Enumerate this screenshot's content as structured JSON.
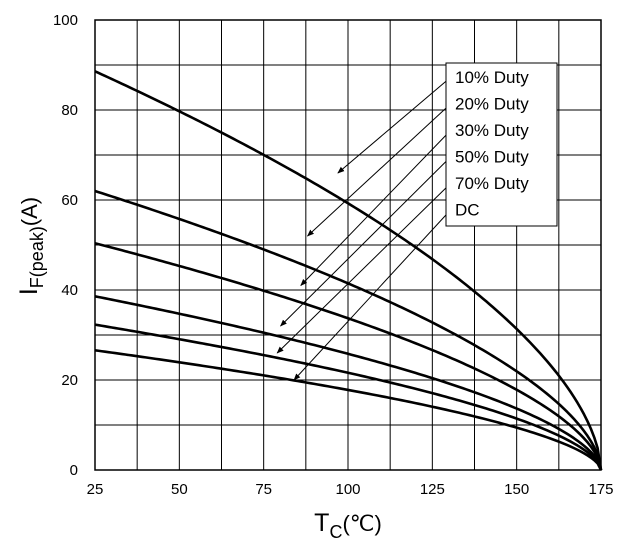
{
  "chart_data": {
    "type": "line",
    "title": "",
    "xlabel": {
      "main": "T",
      "sub": "C",
      "unit": "(℃)"
    },
    "ylabel": {
      "main": "I",
      "sub": "F(peak)",
      "unit": "(A)"
    },
    "xlim": [
      25,
      175
    ],
    "ylim": [
      0,
      100
    ],
    "x_ticks": [
      25,
      50,
      75,
      100,
      125,
      150,
      175
    ],
    "y_ticks": [
      0,
      20,
      40,
      60,
      80,
      100
    ],
    "grid": true,
    "legend_position": "top-right",
    "series": [
      {
        "name": "10% Duty",
        "x": [
          25,
          50,
          75,
          100,
          125,
          150,
          165,
          175
        ],
        "y": [
          88.6,
          81.3,
          72.8,
          63.0,
          51.4,
          36.3,
          23.7,
          0
        ]
      },
      {
        "name": "20% Duty",
        "x": [
          25,
          50,
          75,
          100,
          125,
          150,
          165,
          175
        ],
        "y": [
          62.0,
          56.6,
          50.6,
          43.8,
          35.8,
          25.3,
          16.5,
          0
        ]
      },
      {
        "name": "30% Duty",
        "x": [
          25,
          50,
          75,
          100,
          125,
          150,
          165,
          175
        ],
        "y": [
          50.4,
          46.0,
          41.2,
          35.6,
          29.1,
          20.6,
          13.4,
          0
        ]
      },
      {
        "name": "50% Duty",
        "x": [
          25,
          50,
          75,
          100,
          125,
          150,
          165,
          175
        ],
        "y": [
          38.6,
          35.2,
          31.5,
          27.3,
          22.3,
          15.8,
          10.3,
          0
        ]
      },
      {
        "name": "70% Duty",
        "x": [
          25,
          50,
          75,
          100,
          125,
          150,
          165,
          175
        ],
        "y": [
          32.3,
          29.5,
          26.4,
          22.8,
          18.6,
          13.2,
          8.6,
          0
        ]
      },
      {
        "name": "DC",
        "x": [
          25,
          50,
          75,
          100,
          125,
          150,
          165,
          175
        ],
        "y": [
          26.6,
          24.3,
          21.7,
          18.8,
          15.4,
          10.9,
          7.1,
          0
        ]
      }
    ],
    "annotations": [
      {
        "label": "10% Duty",
        "point_to": [
          97,
          66
        ]
      },
      {
        "label": "20% Duty",
        "point_to": [
          88,
          52
        ]
      },
      {
        "label": "30% Duty",
        "point_to": [
          86,
          41
        ]
      },
      {
        "label": "50% Duty",
        "point_to": [
          80,
          32
        ]
      },
      {
        "label": "70% Duty",
        "point_to": [
          79,
          26
        ]
      },
      {
        "label": "DC",
        "point_to": [
          84,
          20
        ]
      }
    ]
  }
}
